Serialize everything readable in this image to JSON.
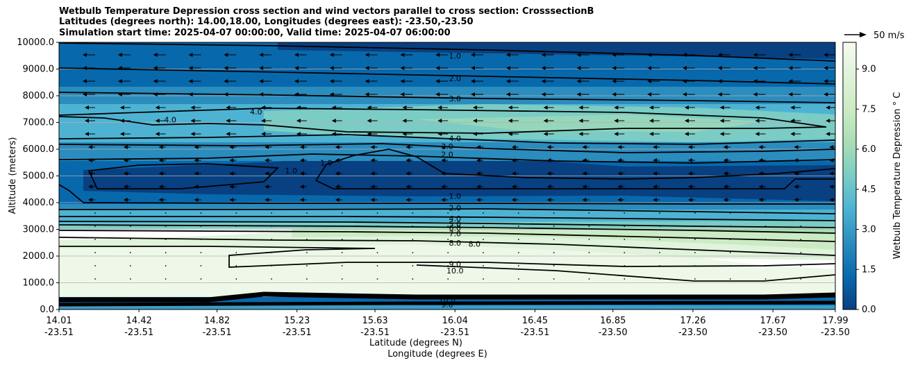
{
  "chart_data": {
    "type": "heatmap",
    "title_lines": [
      "Wetbulb Temperature Depression cross section and wind vectors parallel to cross section: CrosssectionB",
      "Latitudes (degrees north): 14.00,18.00, Longitudes (degrees east): -23.50,-23.50",
      "Simulation start time: 2025-04-07 00:00:00, Valid time: 2025-04-07 06:00:00"
    ],
    "ylabel": "Altitude (meters)",
    "xlabel_lat": "Latitude (degrees N)",
    "xlabel_lon": "Longitude (degrees E)",
    "ylim": [
      0,
      10000
    ],
    "yticks": [
      "0.0",
      "1000.0",
      "2000.0",
      "3000.0",
      "4000.0",
      "5000.0",
      "6000.0",
      "7000.0",
      "8000.0",
      "9000.0",
      "10000.0"
    ],
    "xticks_lat": [
      "14.01",
      "14.42",
      "14.82",
      "15.23",
      "15.63",
      "16.04",
      "16.45",
      "16.85",
      "17.26",
      "17.67",
      "17.99"
    ],
    "xticks_lon": [
      "-23.51",
      "-23.51",
      "-23.51",
      "-23.51",
      "-23.51",
      "-23.51",
      "-23.51",
      "-23.50",
      "-23.50",
      "-23.50",
      "-23.50"
    ],
    "colorbar": {
      "label": "Wetbulb Temperature Depression ° C",
      "range": [
        0,
        10
      ],
      "ticks": [
        "0.0",
        "1.5",
        "3.0",
        "4.5",
        "6.0",
        "7.5",
        "9.0"
      ],
      "colors": [
        "#084081",
        "#0868ac",
        "#2b8cbe",
        "#4eb3d3",
        "#7bccc4",
        "#a8ddb5",
        "#ccebc5",
        "#e0f3db",
        "#f7fcf0"
      ]
    },
    "wind_key": "50 m/s",
    "contour_labels": [
      {
        "text": "1.0",
        "lat": 16.04,
        "alt": 9500
      },
      {
        "text": "2.0",
        "lat": 16.04,
        "alt": 8650
      },
      {
        "text": "3.0",
        "lat": 16.04,
        "alt": 7900
      },
      {
        "text": "4.0",
        "lat": 16.04,
        "alt": 6400
      },
      {
        "text": "3.0",
        "lat": 16.0,
        "alt": 6100
      },
      {
        "text": "2.0",
        "lat": 16.0,
        "alt": 5800
      },
      {
        "text": "4.0",
        "lat": 14.58,
        "alt": 7100
      },
      {
        "text": "4.0",
        "lat": 15.02,
        "alt": 7400
      },
      {
        "text": "1.0",
        "lat": 15.2,
        "alt": 5200
      },
      {
        "text": "1.0",
        "lat": 15.38,
        "alt": 5500
      },
      {
        "text": "1.0",
        "lat": 16.04,
        "alt": 4250
      },
      {
        "text": "2.0",
        "lat": 16.04,
        "alt": 3800
      },
      {
        "text": "4.0",
        "lat": 16.04,
        "alt": 3400
      },
      {
        "text": "5.0",
        "lat": 16.04,
        "alt": 3200
      },
      {
        "text": "6.0",
        "lat": 16.04,
        "alt": 3050
      },
      {
        "text": "7.0",
        "lat": 16.04,
        "alt": 2850
      },
      {
        "text": "8.0",
        "lat": 16.04,
        "alt": 2500
      },
      {
        "text": "8.0",
        "lat": 16.14,
        "alt": 2450
      },
      {
        "text": "9.0",
        "lat": 16.04,
        "alt": 1700
      },
      {
        "text": "10.0",
        "lat": 16.04,
        "alt": 1450
      },
      {
        "text": "10.0",
        "lat": 16.0,
        "alt": 380
      },
      {
        "text": "9.0",
        "lat": 16.0,
        "alt": 180
      }
    ]
  }
}
